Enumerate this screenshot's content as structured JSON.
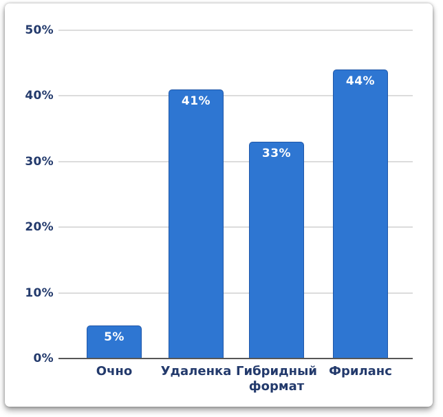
{
  "chart_data": {
    "type": "bar",
    "title": "",
    "xlabel": "",
    "ylabel": "",
    "categories": [
      "Очно",
      "Удаленка",
      "Гибридный формат",
      "Фриланс"
    ],
    "values": [
      5,
      41,
      33,
      44
    ],
    "data_labels": [
      "5%",
      "41%",
      "33%",
      "44%"
    ],
    "yticks": [
      {
        "value": 0,
        "label": "0%"
      },
      {
        "value": 10,
        "label": "10%"
      },
      {
        "value": 20,
        "label": "20%"
      },
      {
        "value": 30,
        "label": "30%"
      },
      {
        "value": 40,
        "label": "40%"
      },
      {
        "value": 50,
        "label": "50%"
      }
    ],
    "ylim": [
      0,
      50
    ],
    "grid": true,
    "legend": false
  },
  "colors": {
    "card_background": "#FFFFFF",
    "bar_fill": "#2E76D2",
    "bar_border": "#1E56A8",
    "bar_label": "#FFFFFF",
    "axis_text": "#233A6C",
    "gridline": "#DCDCDC",
    "axis_line": "#565656"
  }
}
